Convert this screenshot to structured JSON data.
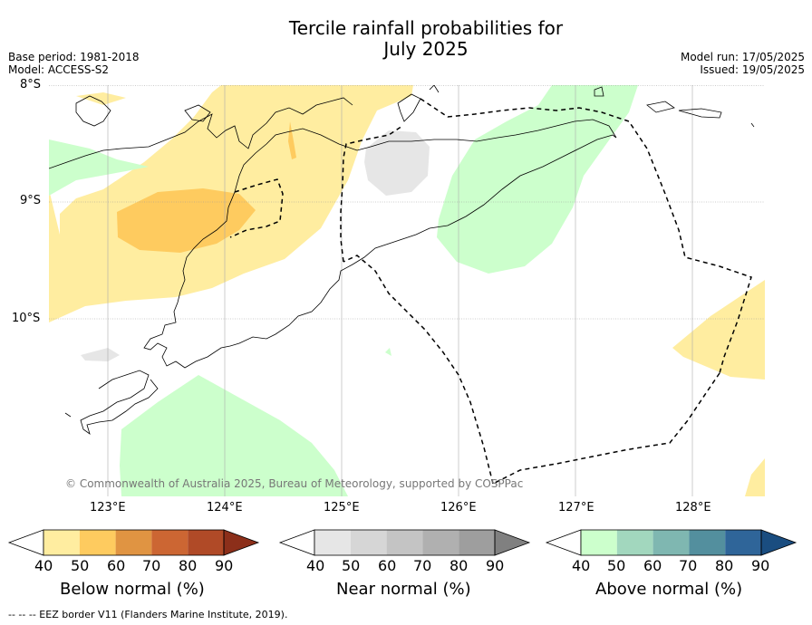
{
  "title_line1": "Tercile rainfall probabilities for",
  "title_line2": "July 2025",
  "base_period": "Base period: 1981-2018",
  "model": "Model: ACCESS-S2",
  "model_run": "Model run: 17/05/2025",
  "issued": "Issued: 19/05/2025",
  "lat_labels": [
    "8°S",
    "9°S",
    "10°S"
  ],
  "lon_labels": [
    "123°E",
    "124°E",
    "125°E",
    "126°E",
    "127°E",
    "128°E"
  ],
  "copyright": "© Commonwealth of Australia 2025, Bureau of Meteorology, supported by COSPPac",
  "footnote": "-- -- -- EEZ border V11 (Flanders Marine Institute, 2019).",
  "colorbars": [
    {
      "label": "Below normal (%)",
      "ticks": [
        "40",
        "50",
        "60",
        "70",
        "80",
        "90"
      ],
      "colors": [
        "#ffffff",
        "#ffeda0",
        "#fecb5f",
        "#e09442",
        "#cc6633",
        "#b04a27",
        "#8c2f1a"
      ]
    },
    {
      "label": "Near normal (%)",
      "ticks": [
        "40",
        "50",
        "60",
        "70",
        "80",
        "90"
      ],
      "colors": [
        "#ffffff",
        "#e6e6e6",
        "#d6d6d6",
        "#c4c4c4",
        "#b0b0b0",
        "#9e9e9e",
        "#808080"
      ]
    },
    {
      "label": "Above normal (%)",
      "ticks": [
        "40",
        "50",
        "60",
        "70",
        "80",
        "90"
      ],
      "colors": [
        "#ffffff",
        "#ccffcc",
        "#a2d7be",
        "#7fb7b1",
        "#538f9e",
        "#2f6599",
        "#1a4d80"
      ]
    }
  ]
}
